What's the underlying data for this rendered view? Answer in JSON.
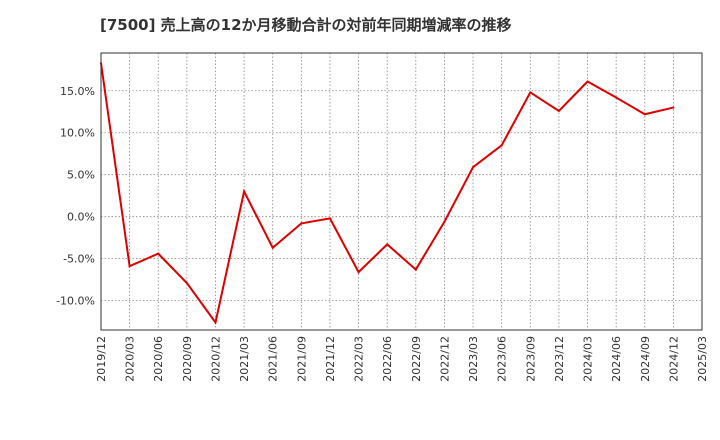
{
  "chart_data": {
    "type": "line",
    "title": "[7500]  売上高の12か月移動合計の対前年同期増減率の推移",
    "xlabel": "",
    "ylabel": "",
    "ylim": [
      -13.5,
      19.5
    ],
    "x_ticks": [
      "2019/12",
      "2020/03",
      "2020/06",
      "2020/09",
      "2020/12",
      "2021/03",
      "2021/06",
      "2021/09",
      "2021/12",
      "2022/03",
      "2022/06",
      "2022/09",
      "2022/12",
      "2023/03",
      "2023/06",
      "2023/09",
      "2023/12",
      "2024/03",
      "2024/06",
      "2024/09",
      "2024/12",
      "2025/03"
    ],
    "y_ticks": [
      15.0,
      10.0,
      5.0,
      0.0,
      -5.0,
      -10.0
    ],
    "y_tick_labels": [
      "15.0%",
      "10.0%",
      "5.0%",
      "0.0%",
      "-5.0%",
      "-10.0%"
    ],
    "grid": true,
    "series": [
      {
        "name": "増減率",
        "color": "#dd0000",
        "x": [
          "2019/12",
          "2020/03",
          "2020/06",
          "2020/09",
          "2020/12",
          "2021/03",
          "2021/06",
          "2021/09",
          "2021/12",
          "2022/03",
          "2022/06",
          "2022/09",
          "2022/12",
          "2023/03",
          "2023/06",
          "2023/09",
          "2023/12",
          "2024/03",
          "2024/06",
          "2024/09",
          "2024/12"
        ],
        "values": [
          18.3,
          -5.9,
          -4.4,
          -7.9,
          -12.6,
          3.0,
          -3.7,
          -0.8,
          -0.2,
          -6.6,
          -3.3,
          -6.3,
          -0.6,
          5.9,
          8.5,
          14.8,
          12.6,
          16.1,
          14.2,
          12.2,
          13.0
        ]
      }
    ]
  }
}
